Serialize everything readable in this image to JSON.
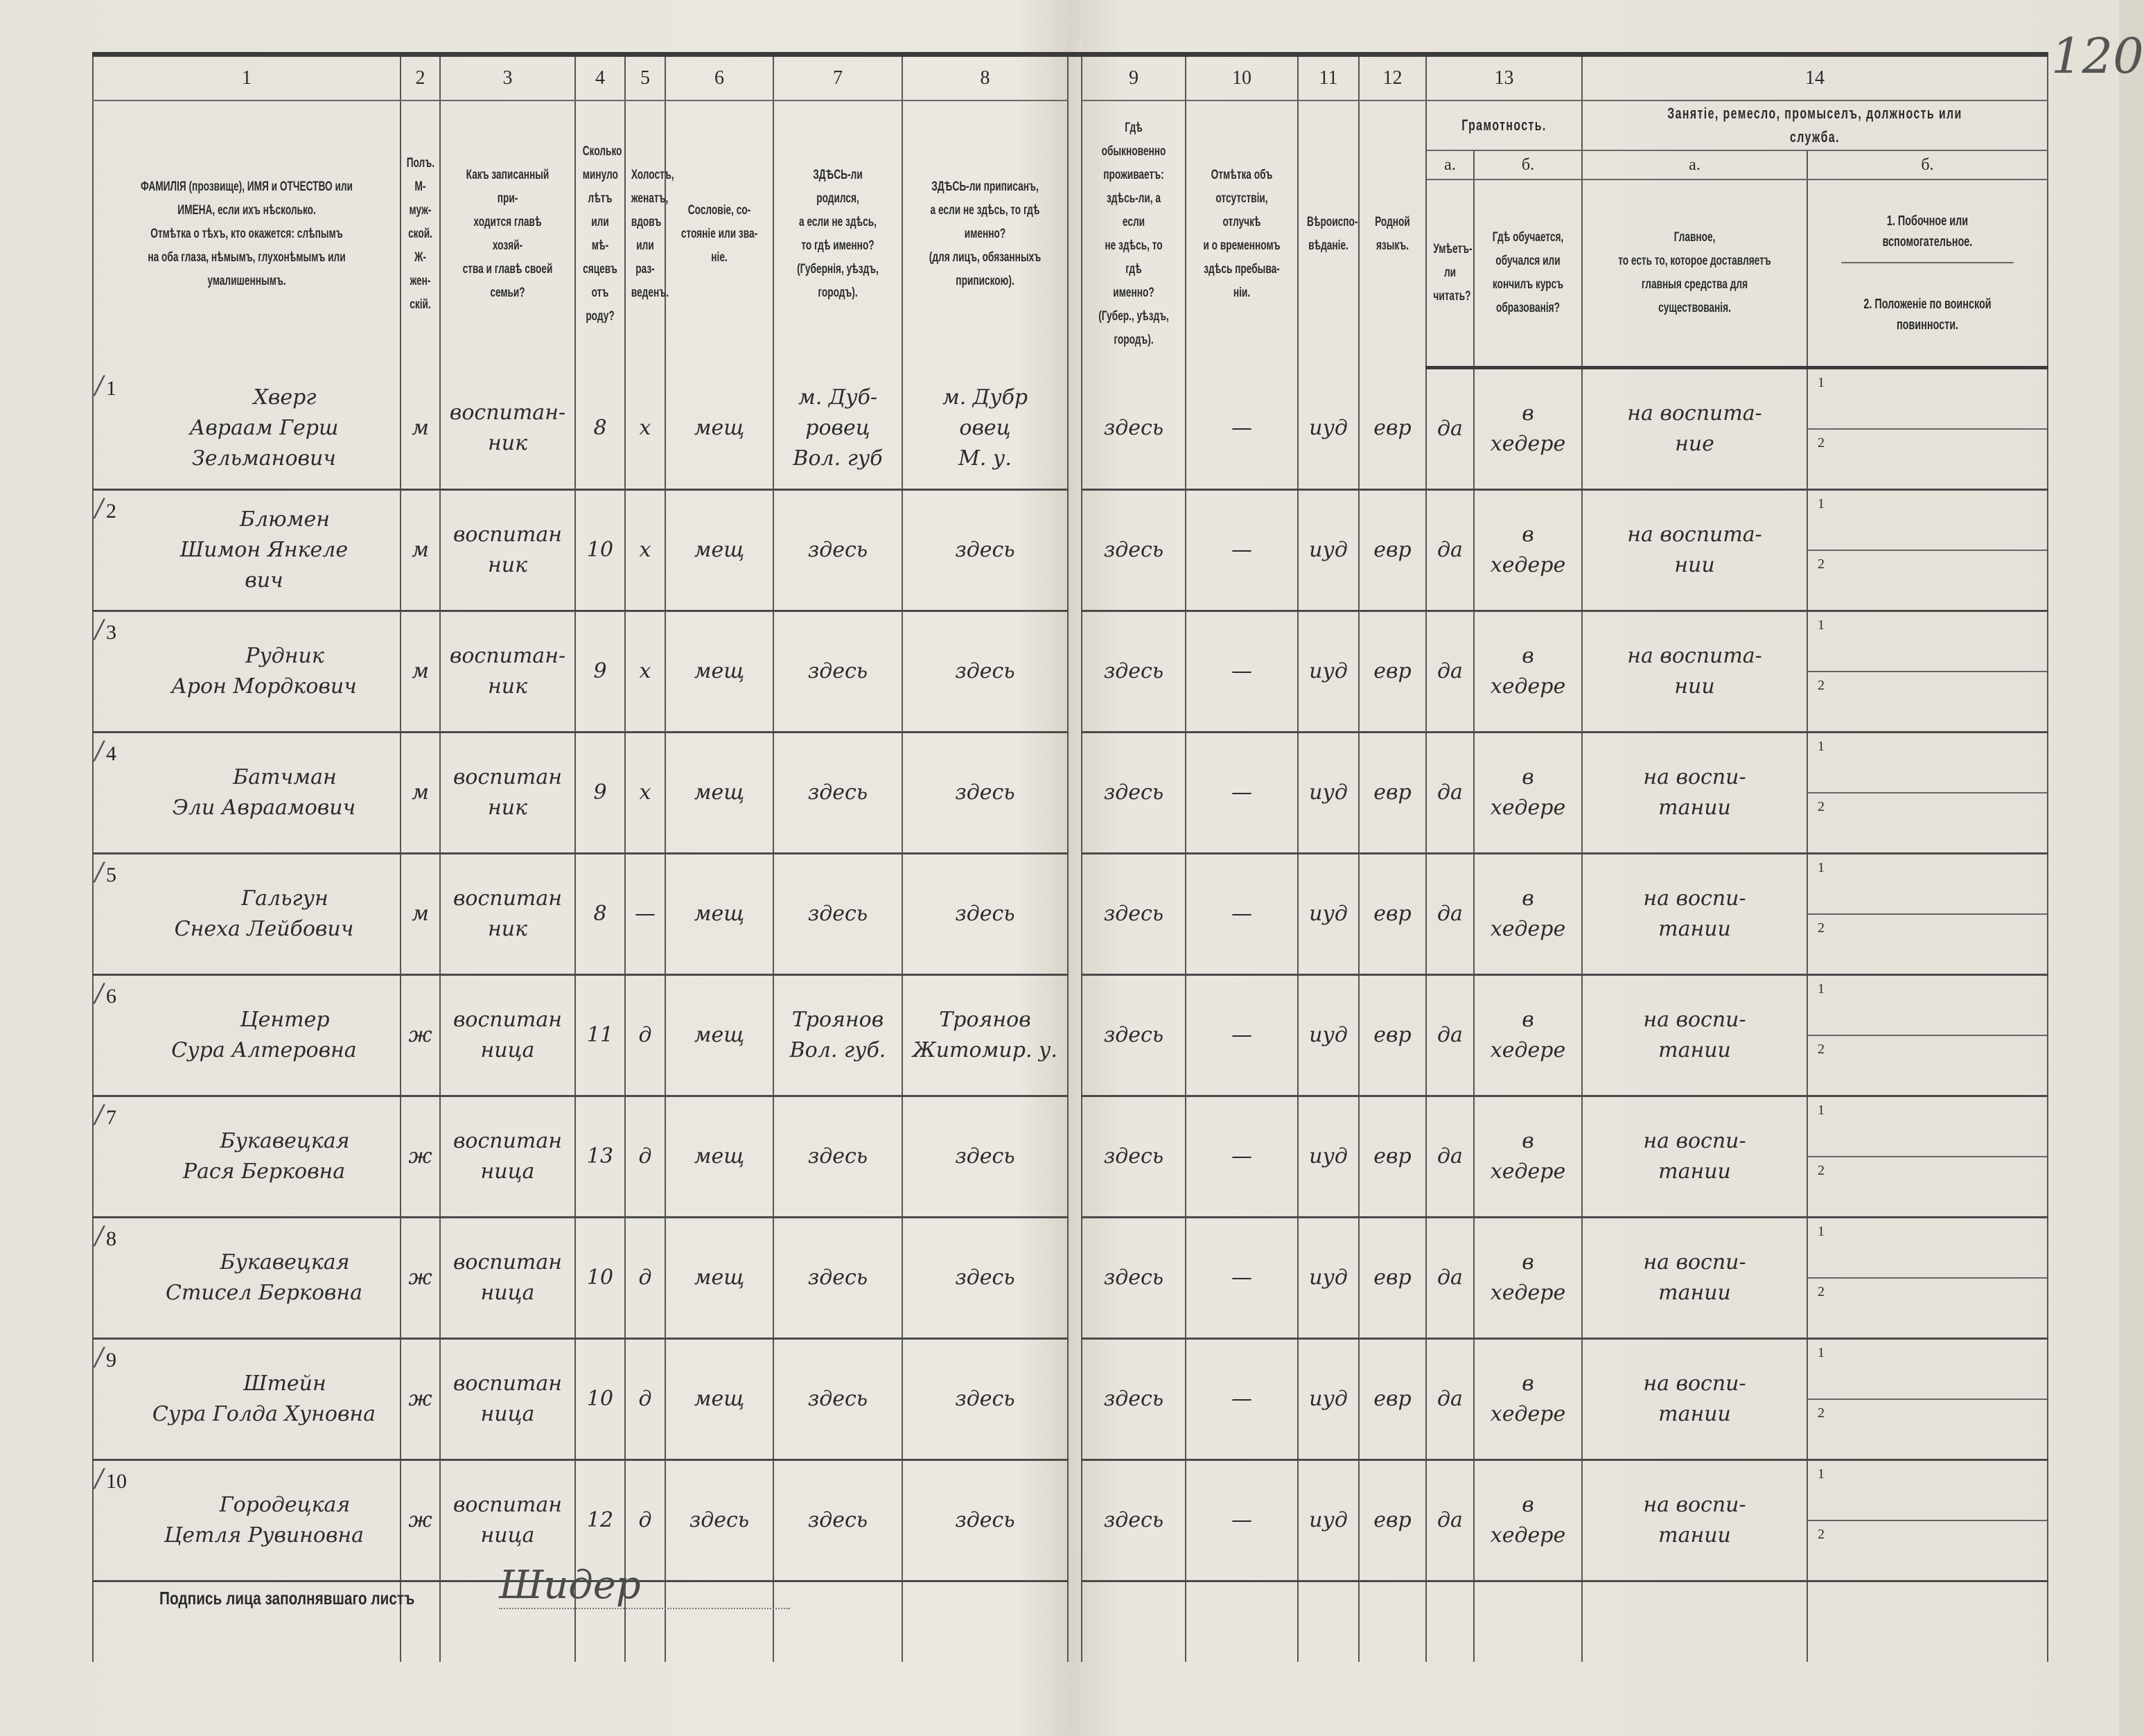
{
  "page_number": "120",
  "header": {
    "col_numbers": [
      "1",
      "2",
      "3",
      "4",
      "5",
      "6",
      "7",
      "8",
      "9",
      "10",
      "11",
      "12",
      "13",
      "14"
    ],
    "col1": "ФАМИЛІЯ (прозвище), ИМЯ и ОТЧЕСТВО или\nИМЕНА, если ихъ нѣсколько.\nОтмѣтка о тѣхъ, кто окажется: слѣпымъ\nна оба глаза, нѣмымъ, глухонѣмымъ или\nумалишеннымъ.",
    "col2": "Полъ.\nМ-муж-\nской.\nЖ-жен-\nскій.",
    "col3": "Какъ записанный при-\nходится главѣ хозяй-\nства и главѣ своей\nсемьи?",
    "col4": "Сколько\nминуло\nлѣтъ\nили мѣ-\nсяцевъ\nотъ роду?",
    "col5": "Холостъ,\nженатъ,\nвдовъ\nили раз-\nведенъ.",
    "col6": "Сословіе, со-\nстояніе или зва-\nніе.",
    "col7": "ЗДѢСЬ-ли родился,\nа если не здѣсь,\nто гдѣ именно?\n(Губернія, уѣздъ, городъ).",
    "col8": "ЗДѢСЬ-ли приписанъ,\nа если не здѣсь, то гдѣ\nименно?\n(для лицъ, обязанныхъ\nприпискою).",
    "col9": "Гдѣ обыкновенно\nпроживаетъ:\nздѣсь-ли, а если\nне здѣсь, то гдѣ\nименно?\n(Губер., уѣздъ, городъ).",
    "col10": "Отмѣтка объ\nотсутствіи, отлучкѣ\nи о временномъ\nздѣсь пребыва-\nніи.",
    "col11": "Вѣроиспо-\nвѣданіе.",
    "col12": "Родной\nязыкъ.",
    "col13_group": "Грамотность.",
    "col13a_letter": "а.",
    "col13b_letter": "б.",
    "col13a": "Умѣетъ-\nли\nчитать?",
    "col13b": "Гдѣ обучается,\nобучался или\nкончилъ курсъ\nобразованія?",
    "col14_group": "Занятіе, ремесло, промыселъ, должность или служба.",
    "col14a_letter": "а.",
    "col14b_letter": "б.",
    "col14a": "Главное,\nто есть то, которое доставляетъ\nглавныя средства для существованія.",
    "col14b_1": "1. Побочное или вспомогательное.",
    "col14b_2": "2. Положеніе по воинской повинности."
  },
  "rows": [
    {
      "no": "1",
      "surname": "Хверг",
      "given": "Авраам Герш\nЗельманович",
      "sex": "м",
      "relation": "воспитан-\nник",
      "age": "8",
      "marital": "х",
      "estate": "мещ",
      "born": "м. Дуб-\nровец\nВол. губ",
      "registered": "м. Дубр\nовец\nМ. у.",
      "residence": "здесь",
      "absence": "—",
      "religion": "иуд",
      "language": "евр",
      "can_read": "да",
      "education": "в\nхедере",
      "occupation": "на воспита-\nние",
      "sub1": "1",
      "sub2": "2"
    },
    {
      "no": "2",
      "surname": "Блюмен",
      "given": "Шимон Янкеле\nвич",
      "sex": "м",
      "relation": "воспитан\nник",
      "age": "10",
      "marital": "х",
      "estate": "мещ",
      "born": "здесь",
      "registered": "здесь",
      "residence": "здесь",
      "absence": "—",
      "religion": "иуд",
      "language": "евр",
      "can_read": "да",
      "education": "в\nхедере",
      "occupation": "на воспита-\nнии",
      "sub1": "1",
      "sub2": "2"
    },
    {
      "no": "3",
      "surname": "Рудник",
      "given": "Арон Мордкович",
      "sex": "м",
      "relation": "воспитан-\nник",
      "age": "9",
      "marital": "х",
      "estate": "мещ",
      "born": "здесь",
      "registered": "здесь",
      "residence": "здесь",
      "absence": "—",
      "religion": "иуд",
      "language": "евр",
      "can_read": "да",
      "education": "в\nхедере",
      "occupation": "на воспита-\nнии",
      "sub1": "1",
      "sub2": "2"
    },
    {
      "no": "4",
      "surname": "Батчман",
      "given": "Эли Авраамович",
      "sex": "м",
      "relation": "воспитан\nник",
      "age": "9",
      "marital": "х",
      "estate": "мещ",
      "born": "здесь",
      "registered": "здесь",
      "residence": "здесь",
      "absence": "—",
      "religion": "иуд",
      "language": "евр",
      "can_read": "да",
      "education": "в\nхедере",
      "occupation": "на воспи-\nтании",
      "sub1": "1",
      "sub2": "2"
    },
    {
      "no": "5",
      "surname": "Гальгун",
      "given": "Снеха Лейбович",
      "sex": "м",
      "relation": "воспитан\nник",
      "age": "8",
      "marital": "—",
      "estate": "мещ",
      "born": "здесь",
      "registered": "здесь",
      "residence": "здесь",
      "absence": "—",
      "religion": "иуд",
      "language": "евр",
      "can_read": "да",
      "education": "в\nхедере",
      "occupation": "на воспи-\nтании",
      "sub1": "1",
      "sub2": "2"
    },
    {
      "no": "6",
      "surname": "Центер",
      "given": "Сура Алтеровна",
      "sex": "ж",
      "relation": "воспитан\nница",
      "age": "11",
      "marital": "д",
      "estate": "мещ",
      "born": "Троянов\nВол. губ.",
      "registered": "Троянов\nЖитомир. у.",
      "residence": "здесь",
      "absence": "—",
      "religion": "иуд",
      "language": "евр",
      "can_read": "да",
      "education": "в\nхедере",
      "occupation": "на воспи-\nтании",
      "sub1": "1",
      "sub2": "2"
    },
    {
      "no": "7",
      "surname": "Букавецкая",
      "given": "Рася Берковна",
      "sex": "ж",
      "relation": "воспитан\nница",
      "age": "13",
      "marital": "д",
      "estate": "мещ",
      "born": "здесь",
      "registered": "здесь",
      "residence": "здесь",
      "absence": "—",
      "religion": "иуд",
      "language": "евр",
      "can_read": "да",
      "education": "в\nхедере",
      "occupation": "на воспи-\nтании",
      "sub1": "1",
      "sub2": "2"
    },
    {
      "no": "8",
      "surname": "Букавецкая",
      "given": "Стисел Берковна",
      "sex": "ж",
      "relation": "воспитан\nница",
      "age": "10",
      "marital": "д",
      "estate": "мещ",
      "born": "здесь",
      "registered": "здесь",
      "residence": "здесь",
      "absence": "—",
      "religion": "иуд",
      "language": "евр",
      "can_read": "да",
      "education": "в\nхедере",
      "occupation": "на воспи-\nтании",
      "sub1": "1",
      "sub2": "2"
    },
    {
      "no": "9",
      "surname": "Штейн",
      "given": "Сура Голда Хуновна",
      "sex": "ж",
      "relation": "воспитан\nница",
      "age": "10",
      "marital": "д",
      "estate": "мещ",
      "born": "здесь",
      "registered": "здесь",
      "residence": "здесь",
      "absence": "—",
      "religion": "иуд",
      "language": "евр",
      "can_read": "да",
      "education": "в\nхедере",
      "occupation": "на воспи-\nтании",
      "sub1": "1",
      "sub2": "2"
    },
    {
      "no": "10",
      "surname": "Городецкая",
      "given": "Цетля Рувиновна",
      "sex": "ж",
      "relation": "воспитан\nница",
      "age": "12",
      "marital": "д",
      "estate": "здесь",
      "born": "здесь",
      "registered": "здесь",
      "residence": "здесь",
      "absence": "—",
      "religion": "иуд",
      "language": "евр",
      "can_read": "да",
      "education": "в\nхедере",
      "occupation": "на воспи-\nтании",
      "sub1": "1",
      "sub2": "2"
    }
  ],
  "footer": {
    "signature_label": "Подпись лица заполнявшаго листъ",
    "signature_value": "Шидер"
  }
}
